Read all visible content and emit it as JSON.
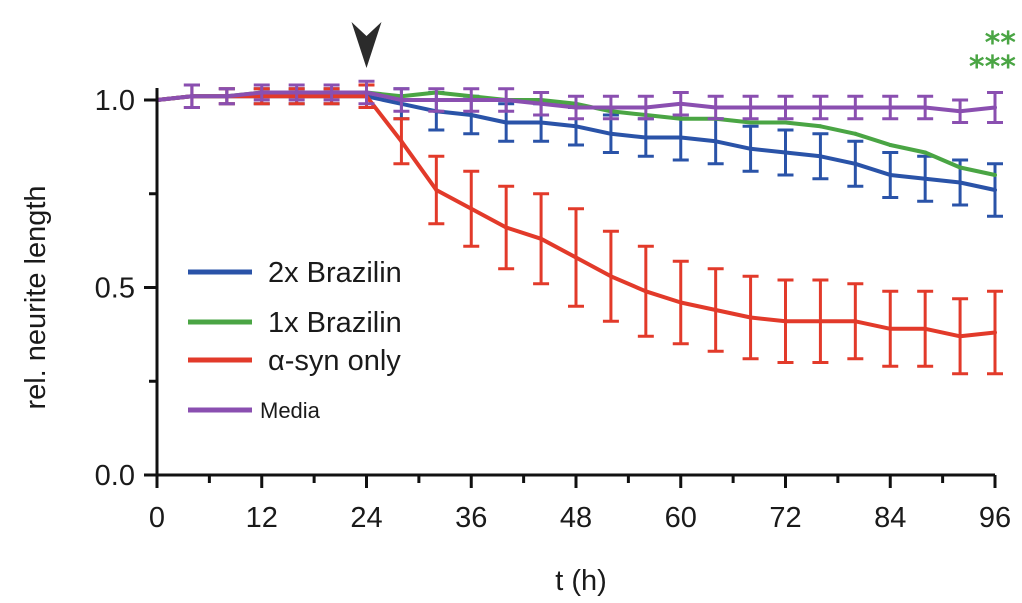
{
  "chart_data": {
    "type": "line",
    "xlabel": "t (h)",
    "ylabel": "rel. neurite length",
    "xlim": [
      0,
      96
    ],
    "ylim": [
      0,
      1.0
    ],
    "xticks": [
      0,
      12,
      24,
      36,
      48,
      60,
      72,
      84,
      96
    ],
    "xtick_labels": [
      "0",
      "12",
      "24",
      "36",
      "48",
      "60",
      "72",
      "84",
      "96"
    ],
    "yticks": [
      0,
      0.5,
      1.0
    ],
    "ytick_labels": [
      "0.0",
      "0.5",
      "1.0"
    ],
    "x": [
      0,
      4,
      8,
      12,
      16,
      20,
      24,
      28,
      32,
      36,
      40,
      44,
      48,
      52,
      56,
      60,
      64,
      68,
      72,
      76,
      80,
      84,
      88,
      92,
      96
    ],
    "arrow_at_x": 24,
    "legend_position": "lower-left",
    "significance": [
      {
        "text": "**",
        "color": "#4aa544"
      },
      {
        "text": "***",
        "color": "#4aa544"
      }
    ],
    "series": [
      {
        "name": "2x Brazilin",
        "color": "#2a53a8",
        "values": [
          1.0,
          1.01,
          1.01,
          1.01,
          1.01,
          1.01,
          1.01,
          0.99,
          0.97,
          0.96,
          0.94,
          0.94,
          0.93,
          0.91,
          0.9,
          0.9,
          0.89,
          0.87,
          0.86,
          0.85,
          0.83,
          0.8,
          0.79,
          0.78,
          0.76
        ],
        "errors": [
          0,
          0.03,
          0.02,
          0.02,
          0.02,
          0.02,
          0.03,
          0.04,
          0.05,
          0.05,
          0.05,
          0.05,
          0.05,
          0.05,
          0.05,
          0.06,
          0.06,
          0.06,
          0.06,
          0.06,
          0.06,
          0.06,
          0.06,
          0.06,
          0.07
        ]
      },
      {
        "name": "1x Brazilin",
        "color": "#4aa544",
        "values": [
          1.0,
          1.01,
          1.01,
          1.02,
          1.02,
          1.02,
          1.02,
          1.01,
          1.02,
          1.01,
          1.0,
          1.0,
          0.99,
          0.97,
          0.96,
          0.95,
          0.95,
          0.94,
          0.94,
          0.93,
          0.91,
          0.88,
          0.86,
          0.82,
          0.8
        ]
      },
      {
        "name": "α-syn only",
        "color": "#e23a2a",
        "values": [
          1.0,
          1.01,
          1.01,
          1.01,
          1.01,
          1.01,
          1.01,
          0.89,
          0.76,
          0.71,
          0.66,
          0.63,
          0.58,
          0.53,
          0.49,
          0.46,
          0.44,
          0.42,
          0.41,
          0.41,
          0.41,
          0.39,
          0.39,
          0.37,
          0.38
        ],
        "errors": [
          0,
          0.03,
          0.02,
          0.02,
          0.02,
          0.02,
          0.03,
          0.06,
          0.09,
          0.1,
          0.11,
          0.12,
          0.13,
          0.12,
          0.12,
          0.11,
          0.11,
          0.11,
          0.11,
          0.11,
          0.1,
          0.1,
          0.1,
          0.1,
          0.11
        ]
      },
      {
        "name": "Media",
        "color": "#8a4fb0",
        "values": [
          1.0,
          1.01,
          1.01,
          1.02,
          1.02,
          1.02,
          1.02,
          1.0,
          1.0,
          1.0,
          1.0,
          0.99,
          0.98,
          0.98,
          0.98,
          0.99,
          0.98,
          0.98,
          0.98,
          0.98,
          0.98,
          0.98,
          0.98,
          0.97,
          0.98
        ],
        "errors": [
          0,
          0.03,
          0.02,
          0.02,
          0.02,
          0.02,
          0.03,
          0.03,
          0.03,
          0.03,
          0.03,
          0.03,
          0.03,
          0.03,
          0.03,
          0.03,
          0.03,
          0.03,
          0.03,
          0.03,
          0.03,
          0.03,
          0.03,
          0.03,
          0.04
        ]
      }
    ]
  }
}
